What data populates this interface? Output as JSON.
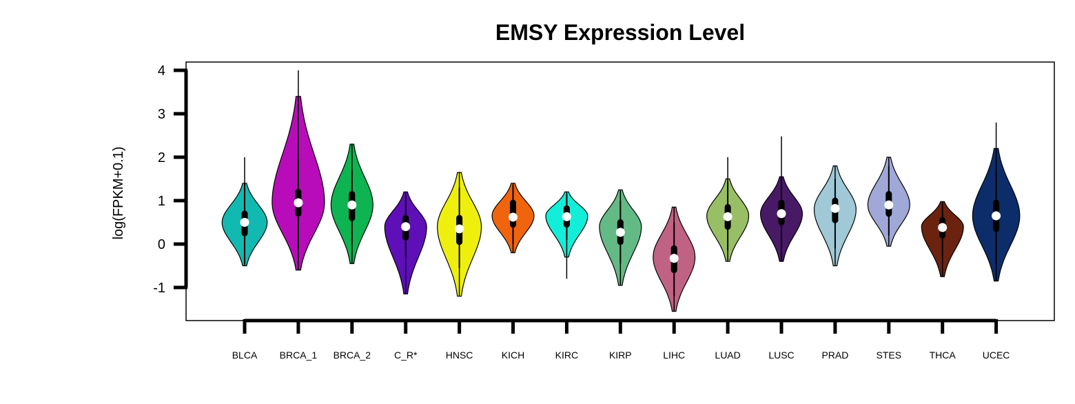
{
  "chart_data": {
    "type": "violin",
    "title": "EMSY Expression Level",
    "xlabel": "",
    "ylabel": "log(FPKM+0.1)",
    "ylim": [
      -1.75,
      4.2
    ],
    "yticks": [
      -1,
      0,
      1,
      2,
      3,
      4
    ],
    "grid": false,
    "categories": [
      "BLCA",
      "BRCA_1",
      "BRCA_2",
      "C_R*",
      "HNSC",
      "KICH",
      "KIRC",
      "KIRP",
      "LIHC",
      "LUAD",
      "LUSC",
      "PRAD",
      "STES",
      "THCA",
      "UCEC"
    ],
    "series": [
      {
        "category": "BLCA",
        "color": "#12B9B1",
        "min": -0.5,
        "max": 2.0,
        "q1": 0.25,
        "median": 0.5,
        "q3": 0.7,
        "whisker_low": -0.45,
        "whisker_high": 1.4,
        "density_peak": 0.5,
        "vmin": -0.5,
        "vmax": 1.4,
        "width": 0.43
      },
      {
        "category": "BRCA_1",
        "color": "#B80CBA",
        "min": -0.6,
        "max": 4.0,
        "q1": 0.7,
        "median": 0.95,
        "q3": 1.2,
        "whisker_low": -0.1,
        "whisker_high": 1.95,
        "density_peak": 0.95,
        "vmin": -0.6,
        "vmax": 3.4,
        "width": 0.5
      },
      {
        "category": "BRCA_2",
        "color": "#0EB452",
        "min": -0.45,
        "max": 2.3,
        "q1": 0.6,
        "median": 0.9,
        "q3": 1.15,
        "whisker_low": 0.0,
        "whisker_high": 1.7,
        "density_peak": 0.9,
        "vmin": -0.45,
        "vmax": 2.3,
        "width": 0.4
      },
      {
        "category": "C_R*",
        "color": "#5E0FB8",
        "min": -1.15,
        "max": 1.2,
        "q1": 0.15,
        "median": 0.4,
        "q3": 0.6,
        "whisker_low": -0.3,
        "whisker_high": 1.1,
        "density_peak": 0.4,
        "vmin": -1.15,
        "vmax": 1.2,
        "width": 0.4
      },
      {
        "category": "HNSC",
        "color": "#EFEF0E",
        "min": -1.2,
        "max": 1.65,
        "q1": 0.05,
        "median": 0.35,
        "q3": 0.6,
        "whisker_low": -0.55,
        "whisker_high": 1.3,
        "density_peak": 0.4,
        "vmin": -1.2,
        "vmax": 1.65,
        "width": 0.42
      },
      {
        "category": "KICH",
        "color": "#F0640E",
        "min": -0.2,
        "max": 1.4,
        "q1": 0.45,
        "median": 0.62,
        "q3": 0.95,
        "whisker_low": 0.0,
        "whisker_high": 1.35,
        "density_peak": 0.65,
        "vmin": -0.2,
        "vmax": 1.4,
        "width": 0.4
      },
      {
        "category": "KIRC",
        "color": "#12EED8",
        "min": -0.8,
        "max": 1.2,
        "q1": 0.45,
        "median": 0.63,
        "q3": 0.82,
        "whisker_low": 0.1,
        "whisker_high": 1.15,
        "density_peak": 0.65,
        "vmin": -0.3,
        "vmax": 1.2,
        "width": 0.4
      },
      {
        "category": "KIRP",
        "color": "#63BA84",
        "min": -0.95,
        "max": 1.25,
        "q1": 0.05,
        "median": 0.27,
        "q3": 0.5,
        "whisker_low": -0.45,
        "whisker_high": 1.0,
        "density_peak": 0.4,
        "vmin": -0.95,
        "vmax": 1.25,
        "width": 0.4
      },
      {
        "category": "LIHC",
        "color": "#C06283",
        "min": -1.55,
        "max": 0.85,
        "q1": -0.6,
        "median": -0.33,
        "q3": -0.1,
        "whisker_low": -1.2,
        "whisker_high": 0.5,
        "density_peak": -0.3,
        "vmin": -1.55,
        "vmax": 0.85,
        "width": 0.4
      },
      {
        "category": "LUAD",
        "color": "#99BF66",
        "min": -0.4,
        "max": 2.0,
        "q1": 0.4,
        "median": 0.63,
        "q3": 0.85,
        "whisker_low": -0.15,
        "whisker_high": 1.45,
        "density_peak": 0.65,
        "vmin": -0.4,
        "vmax": 1.5,
        "width": 0.4
      },
      {
        "category": "LUSC",
        "color": "#481A66",
        "min": -0.4,
        "max": 2.48,
        "q1": 0.5,
        "median": 0.7,
        "q3": 0.95,
        "whisker_low": -0.1,
        "whisker_high": 1.55,
        "density_peak": 0.7,
        "vmin": -0.4,
        "vmax": 1.55,
        "width": 0.4
      },
      {
        "category": "PRAD",
        "color": "#A0C8D6",
        "min": -0.5,
        "max": 1.8,
        "q1": 0.55,
        "median": 0.82,
        "q3": 1.0,
        "whisker_low": -0.1,
        "whisker_high": 1.5,
        "density_peak": 0.8,
        "vmin": -0.5,
        "vmax": 1.8,
        "width": 0.4
      },
      {
        "category": "STES",
        "color": "#9FA8D6",
        "min": -0.05,
        "max": 2.0,
        "q1": 0.7,
        "median": 0.9,
        "q3": 1.15,
        "whisker_low": 0.2,
        "whisker_high": 1.8,
        "density_peak": 0.9,
        "vmin": -0.05,
        "vmax": 2.0,
        "width": 0.4
      },
      {
        "category": "THCA",
        "color": "#6B2310",
        "min": -0.75,
        "max": 0.98,
        "q1": 0.2,
        "median": 0.38,
        "q3": 0.55,
        "whisker_low": -0.3,
        "whisker_high": 0.9,
        "density_peak": 0.4,
        "vmin": -0.75,
        "vmax": 0.98,
        "width": 0.4
      },
      {
        "category": "UCEC",
        "color": "#0D2D6A",
        "min": -0.85,
        "max": 2.8,
        "q1": 0.35,
        "median": 0.65,
        "q3": 0.95,
        "whisker_low": -0.45,
        "whisker_high": 1.65,
        "density_peak": 0.65,
        "vmin": -0.85,
        "vmax": 2.2,
        "width": 0.45
      }
    ]
  }
}
